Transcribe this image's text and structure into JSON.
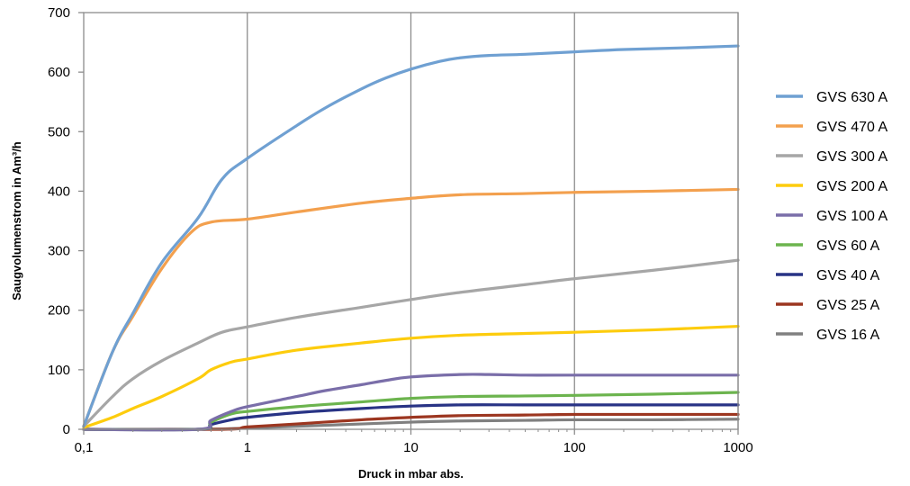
{
  "chart_data": {
    "type": "line",
    "xlabel": "Druck in mbar abs.",
    "ylabel": "Saugvolumenstrom in Am³/h",
    "x_scale": "log",
    "xlim": [
      0.1,
      1000
    ],
    "ylim": [
      0,
      700
    ],
    "x_ticks": [
      0.1,
      1,
      10,
      100,
      1000
    ],
    "x_tick_labels": [
      "0,1",
      "1",
      "10",
      "100",
      "1000"
    ],
    "y_ticks": [
      0,
      100,
      200,
      300,
      400,
      500,
      600,
      700
    ],
    "y_tick_labels": [
      "0",
      "100",
      "200",
      "300",
      "400",
      "500",
      "600",
      "700"
    ],
    "grid": "vertical",
    "legend_position": "right",
    "series": [
      {
        "name": "GVS 630 A",
        "color": "#6fa0d2",
        "points": [
          [
            0.1,
            5
          ],
          [
            0.15,
            130
          ],
          [
            0.2,
            195
          ],
          [
            0.3,
            280
          ],
          [
            0.5,
            355
          ],
          [
            0.7,
            420
          ],
          [
            1,
            455
          ],
          [
            2,
            510
          ],
          [
            3,
            540
          ],
          [
            5,
            572
          ],
          [
            7,
            590
          ],
          [
            10,
            605
          ],
          [
            15,
            618
          ],
          [
            20,
            624
          ],
          [
            30,
            628
          ],
          [
            50,
            630
          ],
          [
            100,
            634
          ],
          [
            200,
            638
          ],
          [
            500,
            641
          ],
          [
            1000,
            644
          ]
        ]
      },
      {
        "name": "GVS 470 A",
        "color": "#f3a04e",
        "points": [
          [
            0.1,
            5
          ],
          [
            0.15,
            130
          ],
          [
            0.2,
            190
          ],
          [
            0.3,
            270
          ],
          [
            0.45,
            330
          ],
          [
            0.6,
            348
          ],
          [
            1,
            353
          ],
          [
            2,
            365
          ],
          [
            5,
            380
          ],
          [
            10,
            388
          ],
          [
            20,
            394
          ],
          [
            50,
            396
          ],
          [
            100,
            398
          ],
          [
            300,
            400
          ],
          [
            1000,
            403
          ]
        ]
      },
      {
        "name": "GVS 300 A",
        "color": "#a6a6a6",
        "points": [
          [
            0.1,
            5
          ],
          [
            0.15,
            55
          ],
          [
            0.2,
            85
          ],
          [
            0.3,
            115
          ],
          [
            0.5,
            145
          ],
          [
            0.7,
            163
          ],
          [
            1,
            172
          ],
          [
            2,
            188
          ],
          [
            5,
            205
          ],
          [
            10,
            218
          ],
          [
            20,
            230
          ],
          [
            50,
            243
          ],
          [
            100,
            253
          ],
          [
            300,
            267
          ],
          [
            1000,
            284
          ]
        ]
      },
      {
        "name": "GVS 200 A",
        "color": "#fdcc0d",
        "points": [
          [
            0.1,
            3
          ],
          [
            0.15,
            20
          ],
          [
            0.2,
            35
          ],
          [
            0.3,
            55
          ],
          [
            0.5,
            85
          ],
          [
            0.6,
            100
          ],
          [
            0.8,
            113
          ],
          [
            1,
            118
          ],
          [
            2,
            133
          ],
          [
            5,
            145
          ],
          [
            10,
            153
          ],
          [
            20,
            158
          ],
          [
            50,
            161
          ],
          [
            100,
            163
          ],
          [
            300,
            167
          ],
          [
            1000,
            173
          ]
        ]
      },
      {
        "name": "GVS 100 A",
        "color": "#7a6ea9",
        "points": [
          [
            0.1,
            0
          ],
          [
            0.5,
            0
          ],
          [
            0.6,
            15
          ],
          [
            0.8,
            30
          ],
          [
            1,
            38
          ],
          [
            2,
            55
          ],
          [
            3,
            65
          ],
          [
            5,
            75
          ],
          [
            7,
            82
          ],
          [
            10,
            88
          ],
          [
            20,
            92
          ],
          [
            30,
            92
          ],
          [
            50,
            91
          ],
          [
            100,
            91
          ],
          [
            300,
            91
          ],
          [
            1000,
            91
          ]
        ]
      },
      {
        "name": "GVS 60 A",
        "color": "#6cb44e",
        "points": [
          [
            0.1,
            0
          ],
          [
            0.5,
            0
          ],
          [
            0.6,
            12
          ],
          [
            0.8,
            26
          ],
          [
            1,
            30
          ],
          [
            2,
            38
          ],
          [
            5,
            46
          ],
          [
            10,
            52
          ],
          [
            20,
            55
          ],
          [
            50,
            56
          ],
          [
            100,
            57
          ],
          [
            300,
            59
          ],
          [
            1000,
            62
          ]
        ]
      },
      {
        "name": "GVS 40 A",
        "color": "#283385",
        "points": [
          [
            0.1,
            0
          ],
          [
            0.5,
            0
          ],
          [
            0.6,
            8
          ],
          [
            0.8,
            16
          ],
          [
            1,
            20
          ],
          [
            2,
            28
          ],
          [
            5,
            35
          ],
          [
            10,
            39
          ],
          [
            20,
            41
          ],
          [
            50,
            41
          ],
          [
            100,
            41
          ],
          [
            1000,
            41
          ]
        ]
      },
      {
        "name": "GVS 25 A",
        "color": "#9c3620",
        "points": [
          [
            0.1,
            0
          ],
          [
            0.7,
            0
          ],
          [
            1,
            4
          ],
          [
            2,
            9
          ],
          [
            5,
            16
          ],
          [
            10,
            20
          ],
          [
            20,
            23
          ],
          [
            50,
            24
          ],
          [
            100,
            25
          ],
          [
            300,
            25
          ],
          [
            1000,
            25
          ]
        ]
      },
      {
        "name": "GVS 16 A",
        "color": "#808080",
        "points": [
          [
            0.1,
            0
          ],
          [
            0.5,
            0
          ],
          [
            1,
            2
          ],
          [
            2,
            5
          ],
          [
            5,
            9
          ],
          [
            10,
            12
          ],
          [
            20,
            14
          ],
          [
            50,
            15
          ],
          [
            100,
            16
          ],
          [
            300,
            16
          ],
          [
            1000,
            17
          ]
        ]
      }
    ]
  }
}
